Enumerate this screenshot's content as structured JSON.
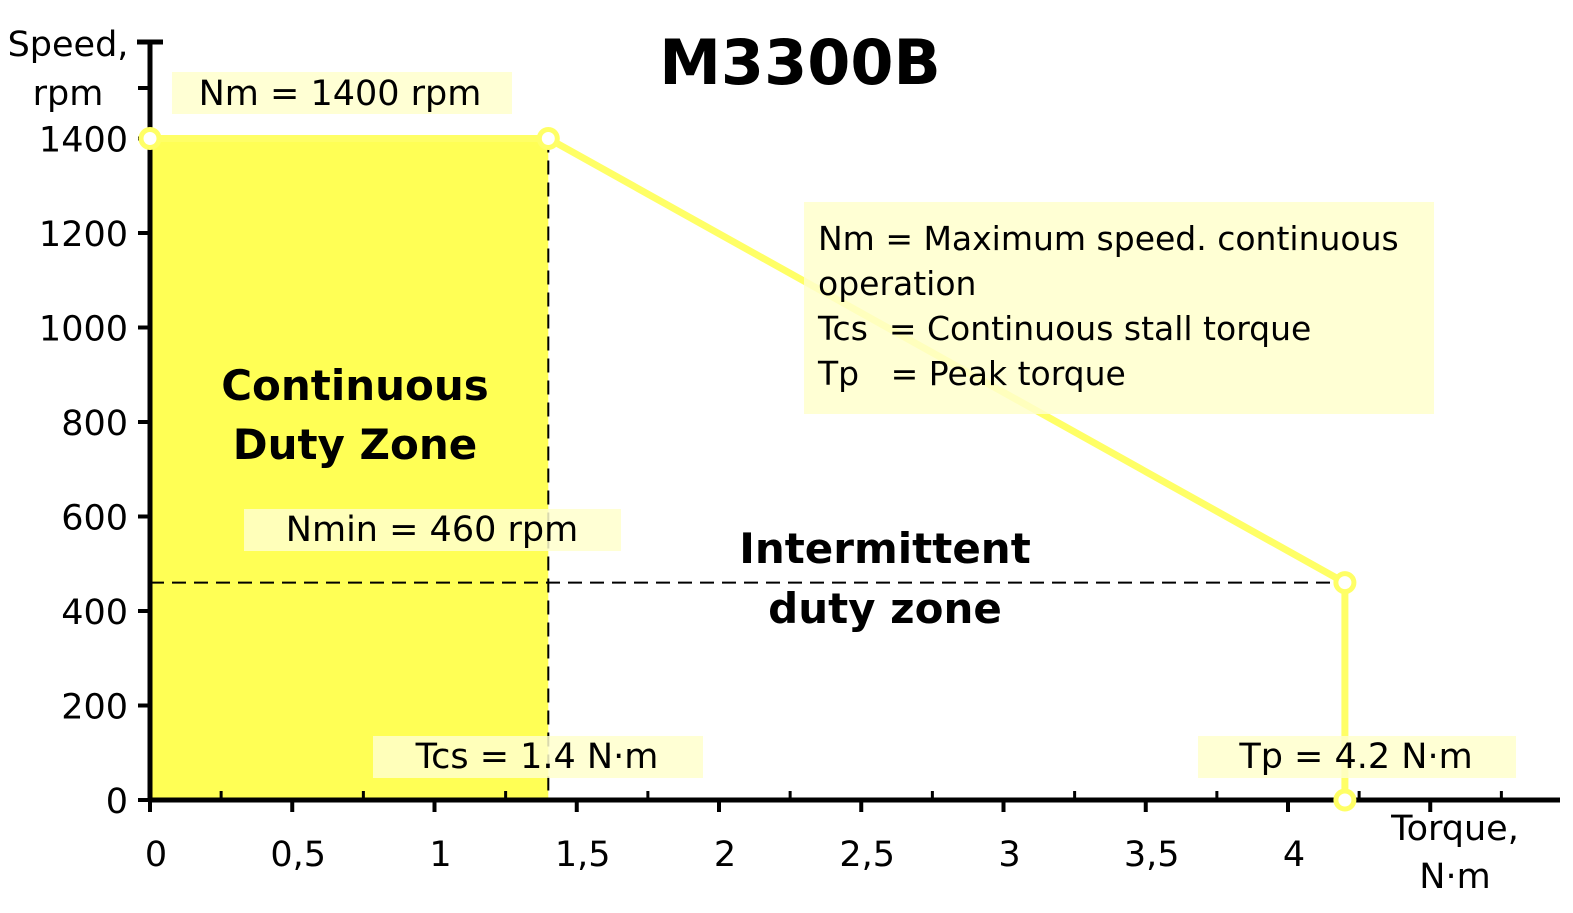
{
  "chart_data": {
    "type": "line",
    "title": "M3300B",
    "ylabel_line1": "Speed,",
    "ylabel_line2": "rpm",
    "xlabel_line1": "Torque,",
    "xlabel_line2": "N·m",
    "xlim": [
      0,
      5
    ],
    "ylim": [
      0,
      1400
    ],
    "x_ticks": [
      0,
      0.5,
      1,
      1.5,
      2,
      2.5,
      3,
      3.5,
      4
    ],
    "x_tick_labels": [
      "0",
      "0,5",
      "1",
      "1,5",
      "2",
      "2,5",
      "3",
      "3,5",
      "4"
    ],
    "y_ticks": [
      0,
      200,
      400,
      600,
      800,
      1000,
      1200,
      1400
    ],
    "y_tick_labels": [
      "0",
      "200",
      "400",
      "600",
      "800",
      "1000",
      "1200",
      "1400"
    ],
    "series": [
      {
        "x": [
          0,
          1.4,
          4.2,
          4.2
        ],
        "y": [
          1400,
          1400,
          460,
          0
        ]
      }
    ],
    "continuous_zone": {
      "x": [
        0,
        1.4
      ],
      "y": [
        0,
        1400
      ]
    },
    "nmin_rpm": 460,
    "tcs": 1.4,
    "tp": 4.2,
    "colors": {
      "line": "#ffff66",
      "zone_fill": "#ffff55",
      "label_box": "#ffffcc"
    },
    "annotations": {
      "nm_label": "Nm = 1400 rpm",
      "nmin_label": "Nmin = 460 rpm",
      "tcs_label": "Tcs = 1.4 N·m",
      "tp_label": "Tp = 4.2 N·m",
      "continuous_zone_line1": "Continuous",
      "continuous_zone_line2": "Duty Zone",
      "intermittent_zone_line1": "Intermittent",
      "intermittent_zone_line2": "duty zone",
      "legend_lines": [
        "Nm = Maximum speed. continuous",
        "operation",
        "Tcs  = Continuous stall torque",
        "Tp   = Peak torque"
      ]
    }
  }
}
